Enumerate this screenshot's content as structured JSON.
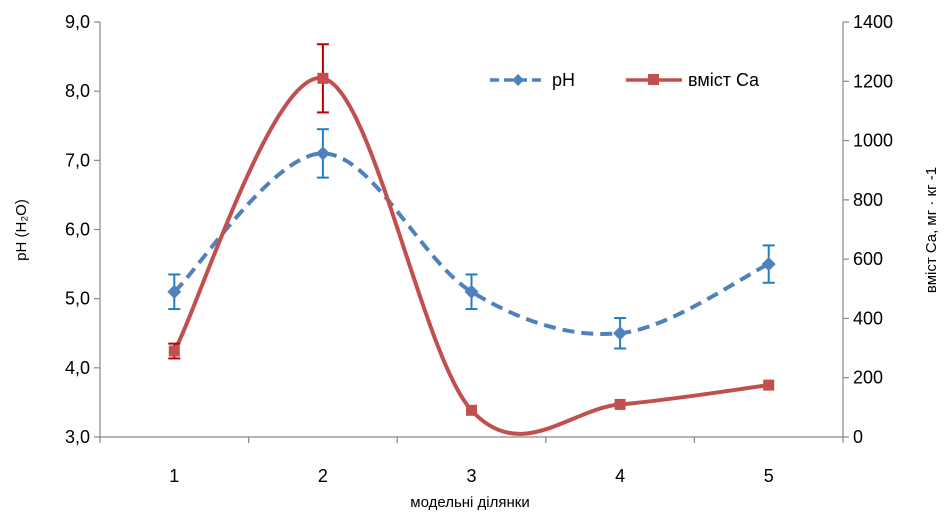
{
  "chart_data": {
    "type": "line",
    "categories": [
      "1",
      "2",
      "3",
      "4",
      "5"
    ],
    "xlabel": "модельні ділянки",
    "ylabel_left": "pH (H₂O)",
    "ylabel_right": "вміст Ca, мг · кг -1",
    "ylim_left": [
      3.0,
      9.0
    ],
    "ylim_right": [
      0,
      1400
    ],
    "yticks_left": [
      "3,0",
      "4,0",
      "5,0",
      "6,0",
      "7,0",
      "8,0",
      "9,0"
    ],
    "yticks_right": [
      "0",
      "200",
      "400",
      "600",
      "800",
      "1000",
      "1200",
      "1400"
    ],
    "legend_position": "top-right",
    "grid": false,
    "series": [
      {
        "name": "pH",
        "axis": "left",
        "color": "#4F81BD",
        "line_style": "dashed",
        "marker": "diamond",
        "values": [
          5.1,
          7.1,
          5.1,
          4.5,
          5.5
        ],
        "error": [
          0.25,
          0.35,
          0.25,
          0.22,
          0.27
        ]
      },
      {
        "name": "вміст Ca",
        "axis": "right",
        "color": "#C0504D",
        "line_style": "solid",
        "marker": "square",
        "values": [
          290,
          1210,
          90,
          110,
          175
        ],
        "error": [
          25,
          115,
          0,
          0,
          0
        ]
      }
    ]
  }
}
